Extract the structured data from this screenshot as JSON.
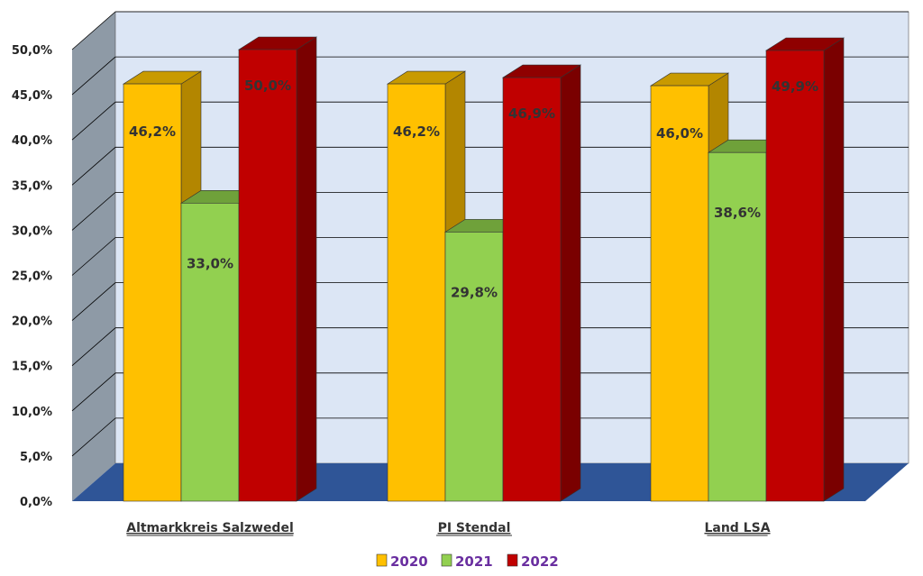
{
  "chart_data": {
    "type": "bar",
    "categories": [
      "Altmarkkreis Salzwedel",
      "PI Stendal",
      "Land LSA"
    ],
    "series": [
      {
        "name": "2020",
        "values": [
          46.2,
          46.2,
          46.0
        ],
        "labels": [
          "46,2%",
          "46,2%",
          "46,0%"
        ],
        "color": "#ffc000",
        "side_color": "#b38600",
        "top_color": "#c89a00"
      },
      {
        "name": "2021",
        "values": [
          33.0,
          29.8,
          38.6
        ],
        "labels": [
          "33,0%",
          "29,8%",
          "38,6%"
        ],
        "color": "#92d050",
        "side_color": "#5e8c2c",
        "top_color": "#6fa13a"
      },
      {
        "name": "2022",
        "values": [
          50.0,
          46.9,
          49.9
        ],
        "labels": [
          "50,0%",
          "46,9%",
          "49,9%"
        ],
        "color": "#c00000",
        "side_color": "#7a0000",
        "top_color": "#8f0000"
      }
    ],
    "y_ticks": [
      "0,0%",
      "5,0%",
      "10,0%",
      "15,0%",
      "20,0%",
      "25,0%",
      "30,0%",
      "35,0%",
      "40,0%",
      "45,0%",
      "50,0%"
    ],
    "ylim": [
      0,
      50
    ],
    "grid": true,
    "legend_position": "bottom",
    "colors": {
      "back_wall": "#dce6f5",
      "side_wall": "#8e9aa6",
      "floor": "#2f5597",
      "grid": "#000000",
      "legend_text": "#6a2fa0"
    }
  }
}
